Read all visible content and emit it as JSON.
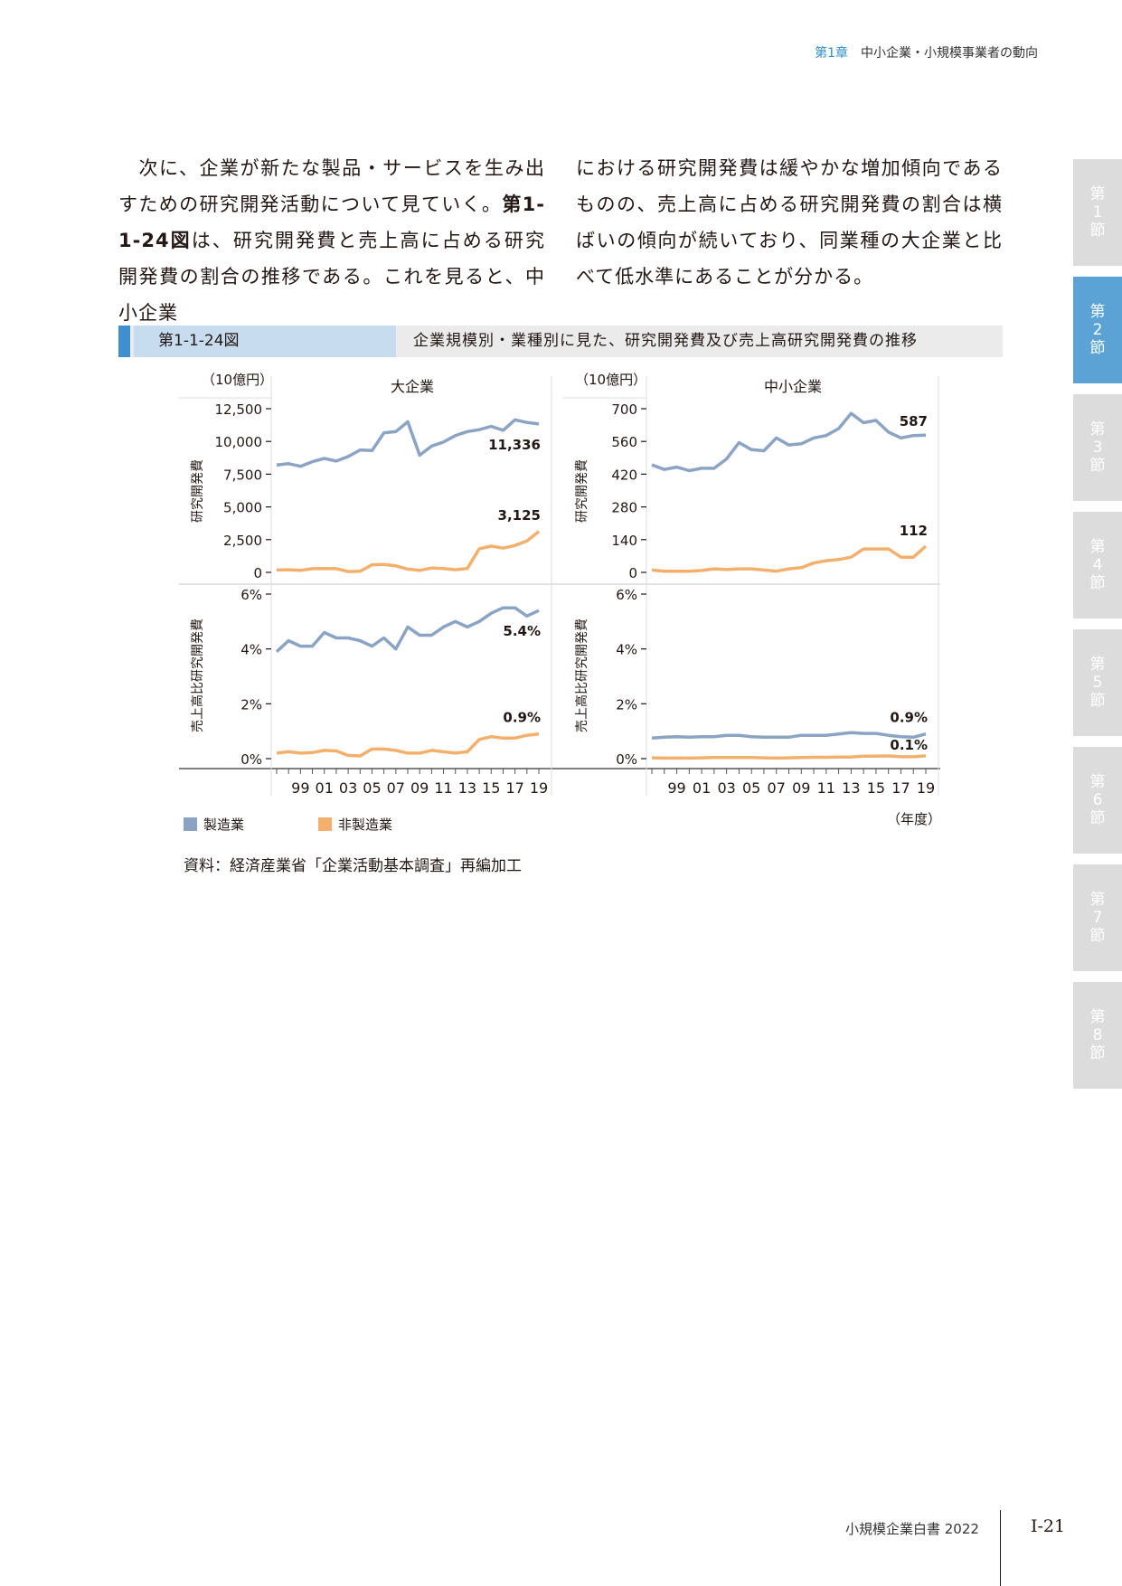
{
  "header": {
    "chapter": "第1章",
    "title": "中小企業・小規模事業者の動向"
  },
  "side_tabs": [
    {
      "label": "第1節",
      "active": false
    },
    {
      "label": "第2節",
      "active": true
    },
    {
      "label": "第3節",
      "active": false
    },
    {
      "label": "第4節",
      "active": false
    },
    {
      "label": "第5節",
      "active": false
    },
    {
      "label": "第6節",
      "active": false
    },
    {
      "label": "第7節",
      "active": false
    },
    {
      "label": "第8節",
      "active": false
    }
  ],
  "intro": {
    "left": {
      "p1": "　次に、企業が新たな製品・サービスを生み出すための研究開発活動について見ていく。",
      "ref": "第1-1-24図",
      "p2": "は、研究開発費と売上高に占める研究開発費の割合の推移である。これを見ると、中小企業"
    },
    "right": "における研究開発費は緩やかな増加傾向であるものの、売上高に占める研究開発費の割合は横ばいの傾向が続いており、同業種の大企業と比べて低水準にあることが分かる。"
  },
  "figure": {
    "number": "第1-1-24図",
    "title": "企業規模別・業種別に見た、研究開発費及び売上高研究開発費の推移",
    "unit": "（10億円）",
    "col_large": "大企業",
    "col_sme": "中小企業",
    "ylabel_top": "研究開発費",
    "ylabel_bottom": "売上高比研究開発費",
    "x_unit": "（年度）",
    "legend": [
      {
        "name": "製造業",
        "color": "#8ba4c3"
      },
      {
        "name": "非製造業",
        "color": "#f3b06d"
      }
    ],
    "source": "資料：経済産業省「企業活動基本調査」再編加工"
  },
  "chart_data": [
    {
      "type": "line",
      "title": "大企業",
      "ylabel": "研究開発費",
      "unit": "（10億円）",
      "x": [
        1997,
        1998,
        1999,
        2000,
        2001,
        2002,
        2003,
        2004,
        2005,
        2006,
        2007,
        2008,
        2009,
        2010,
        2011,
        2012,
        2013,
        2014,
        2015,
        2016,
        2017,
        2018,
        2019
      ],
      "ylim": [
        0,
        12500
      ],
      "yticks": [
        0,
        2500,
        5000,
        7500,
        10000,
        12500
      ],
      "ytick_labels": [
        "0",
        "2,500",
        "5,000",
        "7,500",
        "10,000",
        "12,500"
      ],
      "series": [
        {
          "name": "製造業",
          "values": [
            8200,
            8300,
            8100,
            8450,
            8700,
            8500,
            8850,
            9350,
            9300,
            10650,
            10750,
            11500,
            8950,
            9650,
            9950,
            10450,
            10750,
            10900,
            11150,
            10850,
            11650,
            11450,
            11336
          ],
          "end_label": "11,336"
        },
        {
          "name": "非製造業",
          "values": [
            180,
            200,
            150,
            280,
            300,
            280,
            60,
            80,
            580,
            600,
            500,
            250,
            150,
            330,
            300,
            200,
            300,
            1800,
            2000,
            1850,
            2050,
            2400,
            3125
          ],
          "end_label": "3,125"
        }
      ]
    },
    {
      "type": "line",
      "title": "中小企業",
      "ylabel": "研究開発費",
      "unit": "（10億円）",
      "x": [
        1997,
        1998,
        1999,
        2000,
        2001,
        2002,
        2003,
        2004,
        2005,
        2006,
        2007,
        2008,
        2009,
        2010,
        2011,
        2012,
        2013,
        2014,
        2015,
        2016,
        2017,
        2018,
        2019
      ],
      "ylim": [
        0,
        700
      ],
      "yticks": [
        0,
        140,
        280,
        420,
        560,
        700
      ],
      "ytick_labels": [
        "0",
        "140",
        "280",
        "420",
        "560",
        "700"
      ],
      "series": [
        {
          "name": "製造業",
          "values": [
            460,
            440,
            450,
            435,
            445,
            445,
            485,
            555,
            525,
            520,
            575,
            545,
            550,
            575,
            585,
            615,
            680,
            640,
            650,
            600,
            575,
            585,
            587
          ],
          "end_label": "587"
        },
        {
          "name": "非製造業",
          "values": [
            10,
            5,
            5,
            5,
            8,
            15,
            12,
            15,
            15,
            10,
            5,
            15,
            20,
            40,
            50,
            55,
            65,
            100,
            100,
            100,
            65,
            65,
            112
          ],
          "end_label": "112"
        }
      ]
    },
    {
      "type": "line",
      "title": "大企業",
      "ylabel": "売上高比研究開発費",
      "x": [
        1997,
        1998,
        1999,
        2000,
        2001,
        2002,
        2003,
        2004,
        2005,
        2006,
        2007,
        2008,
        2009,
        2010,
        2011,
        2012,
        2013,
        2014,
        2015,
        2016,
        2017,
        2018,
        2019
      ],
      "ylim": [
        0,
        6
      ],
      "yticks": [
        0,
        2,
        4,
        6
      ],
      "ytick_labels": [
        "0%",
        "2%",
        "4%",
        "6%"
      ],
      "series": [
        {
          "name": "製造業",
          "values": [
            3.9,
            4.3,
            4.1,
            4.1,
            4.6,
            4.4,
            4.4,
            4.3,
            4.1,
            4.4,
            4.0,
            4.8,
            4.5,
            4.5,
            4.8,
            5.0,
            4.8,
            5.0,
            5.3,
            5.5,
            5.5,
            5.2,
            5.4
          ],
          "end_label": "5.4%"
        },
        {
          "name": "非製造業",
          "values": [
            0.2,
            0.25,
            0.2,
            0.22,
            0.3,
            0.28,
            0.12,
            0.1,
            0.35,
            0.35,
            0.3,
            0.2,
            0.2,
            0.3,
            0.25,
            0.2,
            0.25,
            0.7,
            0.8,
            0.75,
            0.75,
            0.85,
            0.9
          ],
          "end_label": "0.9%"
        }
      ]
    },
    {
      "type": "line",
      "title": "中小企業",
      "ylabel": "売上高比研究開発費",
      "x": [
        1997,
        1998,
        1999,
        2000,
        2001,
        2002,
        2003,
        2004,
        2005,
        2006,
        2007,
        2008,
        2009,
        2010,
        2011,
        2012,
        2013,
        2014,
        2015,
        2016,
        2017,
        2018,
        2019
      ],
      "ylim": [
        0,
        6
      ],
      "yticks": [
        0,
        2,
        4,
        6
      ],
      "ytick_labels": [
        "0%",
        "2%",
        "4%",
        "6%"
      ],
      "series": [
        {
          "name": "製造業",
          "values": [
            0.75,
            0.78,
            0.8,
            0.78,
            0.8,
            0.8,
            0.85,
            0.85,
            0.8,
            0.78,
            0.78,
            0.78,
            0.85,
            0.85,
            0.85,
            0.9,
            0.95,
            0.92,
            0.92,
            0.85,
            0.8,
            0.78,
            0.9
          ],
          "end_label": "0.9%"
        },
        {
          "name": "非製造業",
          "values": [
            0.03,
            0.02,
            0.02,
            0.02,
            0.03,
            0.04,
            0.04,
            0.04,
            0.04,
            0.03,
            0.02,
            0.03,
            0.04,
            0.05,
            0.05,
            0.06,
            0.06,
            0.09,
            0.09,
            0.1,
            0.07,
            0.07,
            0.1
          ],
          "end_label": "0.1%"
        }
      ]
    }
  ],
  "x_tick_labels": [
    "99",
    "01",
    "03",
    "05",
    "07",
    "09",
    "11",
    "13",
    "15",
    "17",
    "19"
  ],
  "footer": {
    "book": "小規模企業白書 2022",
    "page": "Ⅰ-21"
  }
}
